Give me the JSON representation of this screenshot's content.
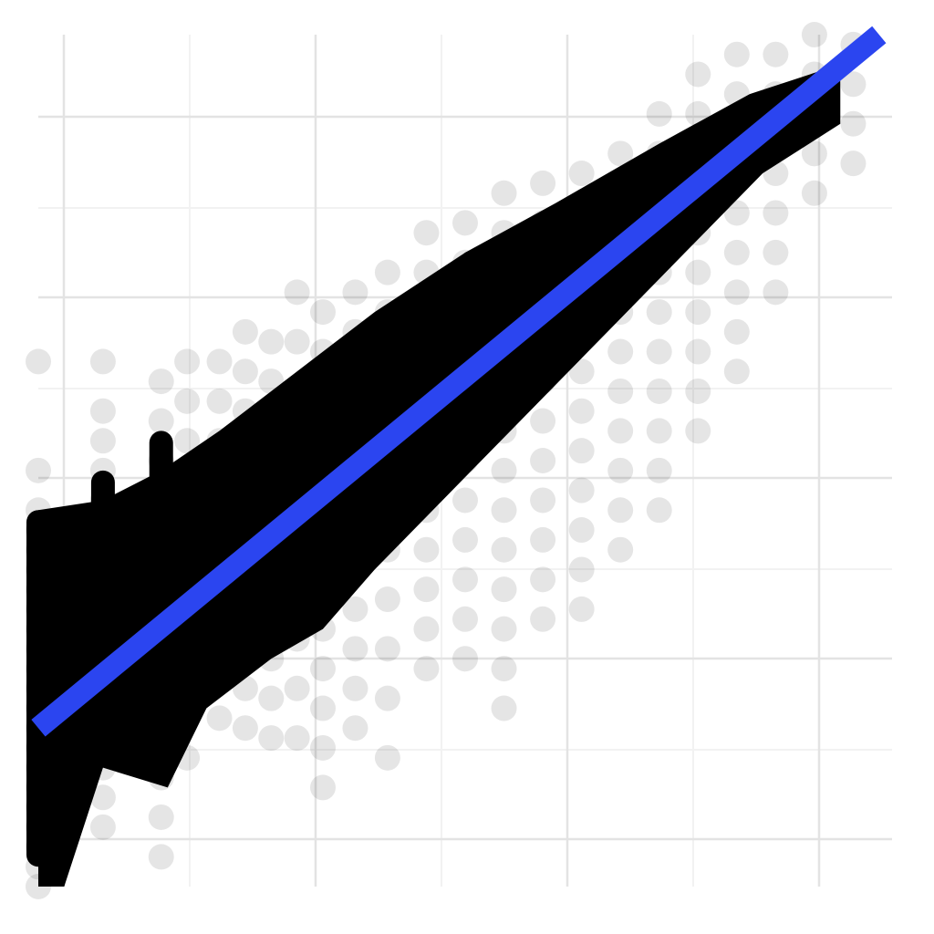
{
  "chart_data": {
    "type": "scatter",
    "title": "",
    "xlabel": "",
    "ylabel": "",
    "x_axis_scale": "linear",
    "y_axis_scale": "linear",
    "xlim": [
      0.0,
      6.6
    ],
    "ylim": [
      0.0,
      8.6
    ],
    "grid": true,
    "legend": "none",
    "point_color": "#000000",
    "point_alpha": 0.1,
    "series": [
      {
        "kind": "points",
        "description_free": true,
        "columns_x": [
          0.0,
          0.5,
          0.95,
          1.15,
          1.4,
          1.6,
          1.8,
          2.0,
          2.2,
          2.45,
          2.7
        ],
        "points": [
          [
            0.0,
            0.0
          ],
          [
            0.0,
            0.2
          ],
          [
            0.0,
            0.4
          ],
          [
            0.0,
            0.6
          ],
          [
            0.0,
            0.8
          ],
          [
            0.0,
            1.0
          ],
          [
            0.0,
            1.2
          ],
          [
            0.0,
            1.4
          ],
          [
            0.0,
            1.6
          ],
          [
            0.0,
            1.8
          ],
          [
            0.0,
            2.0
          ],
          [
            0.0,
            2.2
          ],
          [
            0.0,
            2.4
          ],
          [
            0.0,
            2.6
          ],
          [
            0.0,
            2.8
          ],
          [
            0.0,
            3.0
          ],
          [
            0.0,
            3.2
          ],
          [
            0.0,
            3.4
          ],
          [
            0.0,
            3.6
          ],
          [
            0.0,
            3.8
          ],
          [
            0.0,
            4.2
          ],
          [
            0.0,
            5.3
          ],
          [
            0.5,
            0.6
          ],
          [
            0.5,
            0.9
          ],
          [
            0.5,
            1.2
          ],
          [
            0.5,
            1.5
          ],
          [
            0.5,
            1.8
          ],
          [
            0.5,
            2.1
          ],
          [
            0.5,
            2.4
          ],
          [
            0.5,
            2.7
          ],
          [
            0.5,
            3.0
          ],
          [
            0.5,
            3.3
          ],
          [
            0.5,
            3.6
          ],
          [
            0.5,
            3.9
          ],
          [
            0.5,
            4.2
          ],
          [
            0.5,
            4.5
          ],
          [
            0.5,
            4.8
          ],
          [
            0.5,
            5.3
          ],
          [
            0.95,
            0.3
          ],
          [
            0.95,
            0.7
          ],
          [
            0.95,
            1.1
          ],
          [
            0.95,
            1.5
          ],
          [
            0.95,
            1.9
          ],
          [
            0.95,
            2.3
          ],
          [
            0.95,
            2.7
          ],
          [
            0.95,
            3.1
          ],
          [
            0.95,
            3.5
          ],
          [
            0.95,
            3.9
          ],
          [
            0.95,
            4.3
          ],
          [
            0.95,
            4.7
          ],
          [
            0.95,
            5.1
          ],
          [
            1.15,
            1.3
          ],
          [
            1.15,
            1.7
          ],
          [
            1.15,
            2.1
          ],
          [
            1.15,
            2.5
          ],
          [
            1.15,
            2.9
          ],
          [
            1.15,
            3.3
          ],
          [
            1.15,
            3.7
          ],
          [
            1.15,
            4.1
          ],
          [
            1.15,
            4.5
          ],
          [
            1.15,
            4.9
          ],
          [
            1.15,
            5.3
          ],
          [
            1.4,
            1.7
          ],
          [
            1.4,
            2.1
          ],
          [
            1.4,
            2.5
          ],
          [
            1.4,
            2.9
          ],
          [
            1.4,
            3.3
          ],
          [
            1.4,
            3.7
          ],
          [
            1.4,
            4.1
          ],
          [
            1.4,
            4.5
          ],
          [
            1.4,
            4.9
          ],
          [
            1.4,
            5.3
          ],
          [
            1.6,
            1.6
          ],
          [
            1.6,
            2.0
          ],
          [
            1.6,
            2.4
          ],
          [
            1.6,
            2.8
          ],
          [
            1.6,
            3.2
          ],
          [
            1.6,
            3.6
          ],
          [
            1.6,
            4.0
          ],
          [
            1.6,
            4.4
          ],
          [
            1.6,
            4.8
          ],
          [
            1.6,
            5.2
          ],
          [
            1.6,
            5.6
          ],
          [
            1.8,
            1.5
          ],
          [
            1.8,
            1.9
          ],
          [
            1.8,
            2.3
          ],
          [
            1.8,
            2.7
          ],
          [
            1.8,
            3.1
          ],
          [
            1.8,
            3.5
          ],
          [
            1.8,
            3.9
          ],
          [
            1.8,
            4.3
          ],
          [
            1.8,
            4.7
          ],
          [
            1.8,
            5.1
          ],
          [
            1.8,
            5.5
          ],
          [
            2.0,
            1.5
          ],
          [
            2.0,
            2.0
          ],
          [
            2.0,
            2.5
          ],
          [
            2.0,
            3.0
          ],
          [
            2.0,
            3.5
          ],
          [
            2.0,
            4.0
          ],
          [
            2.0,
            4.5
          ],
          [
            2.0,
            5.0
          ],
          [
            2.0,
            5.5
          ],
          [
            2.0,
            6.0
          ],
          [
            2.2,
            1.0
          ],
          [
            2.2,
            1.4
          ],
          [
            2.2,
            1.8
          ],
          [
            2.2,
            2.2
          ],
          [
            2.2,
            2.6
          ],
          [
            2.2,
            3.0
          ],
          [
            2.2,
            3.4
          ],
          [
            2.2,
            3.8
          ],
          [
            2.2,
            4.2
          ],
          [
            2.2,
            4.6
          ],
          [
            2.2,
            5.0
          ],
          [
            2.2,
            5.4
          ],
          [
            2.2,
            5.8
          ],
          [
            2.45,
            1.6
          ],
          [
            2.45,
            2.0
          ],
          [
            2.45,
            2.4
          ],
          [
            2.45,
            2.8
          ],
          [
            2.45,
            3.2
          ],
          [
            2.45,
            3.6
          ],
          [
            2.45,
            4.0
          ],
          [
            2.45,
            4.4
          ],
          [
            2.45,
            4.8
          ],
          [
            2.45,
            5.2
          ],
          [
            2.45,
            5.6
          ],
          [
            2.45,
            6.0
          ],
          [
            2.7,
            1.3
          ],
          [
            2.7,
            1.9
          ],
          [
            2.7,
            2.4
          ],
          [
            2.7,
            2.9
          ],
          [
            2.7,
            3.4
          ],
          [
            2.7,
            3.8
          ],
          [
            2.7,
            4.2
          ],
          [
            2.7,
            4.6
          ],
          [
            2.7,
            5.0
          ],
          [
            2.7,
            5.4
          ],
          [
            2.7,
            5.8
          ],
          [
            2.7,
            6.2
          ],
          [
            3.0,
            2.2
          ],
          [
            3.0,
            2.6
          ],
          [
            3.0,
            3.0
          ],
          [
            3.0,
            3.4
          ],
          [
            3.0,
            3.8
          ],
          [
            3.0,
            4.2
          ],
          [
            3.0,
            4.6
          ],
          [
            3.0,
            5.0
          ],
          [
            3.0,
            5.4
          ],
          [
            3.0,
            5.8
          ],
          [
            3.0,
            6.2
          ],
          [
            3.0,
            6.6
          ],
          [
            3.3,
            2.3
          ],
          [
            3.3,
            2.7
          ],
          [
            3.3,
            3.1
          ],
          [
            3.3,
            3.5
          ],
          [
            3.3,
            3.9
          ],
          [
            3.3,
            4.3
          ],
          [
            3.3,
            4.7
          ],
          [
            3.3,
            5.1
          ],
          [
            3.3,
            5.5
          ],
          [
            3.3,
            5.9
          ],
          [
            3.3,
            6.3
          ],
          [
            3.3,
            6.7
          ],
          [
            3.6,
            1.8
          ],
          [
            3.6,
            2.2
          ],
          [
            3.6,
            2.6
          ],
          [
            3.6,
            3.0
          ],
          [
            3.6,
            3.4
          ],
          [
            3.6,
            3.8
          ],
          [
            3.6,
            4.2
          ],
          [
            3.6,
            4.6
          ],
          [
            3.6,
            5.0
          ],
          [
            3.6,
            5.4
          ],
          [
            3.6,
            5.8
          ],
          [
            3.6,
            6.2
          ],
          [
            3.6,
            6.6
          ],
          [
            3.6,
            7.0
          ],
          [
            3.9,
            2.7
          ],
          [
            3.9,
            3.1
          ],
          [
            3.9,
            3.5
          ],
          [
            3.9,
            3.9
          ],
          [
            3.9,
            4.3
          ],
          [
            3.9,
            4.7
          ],
          [
            3.9,
            5.1
          ],
          [
            3.9,
            5.5
          ],
          [
            3.9,
            5.9
          ],
          [
            3.9,
            6.3
          ],
          [
            3.9,
            6.7
          ],
          [
            3.9,
            7.1
          ],
          [
            4.2,
            2.8
          ],
          [
            4.2,
            3.2
          ],
          [
            4.2,
            3.6
          ],
          [
            4.2,
            4.0
          ],
          [
            4.2,
            4.4
          ],
          [
            4.2,
            4.8
          ],
          [
            4.2,
            5.2
          ],
          [
            4.2,
            5.6
          ],
          [
            4.2,
            6.0
          ],
          [
            4.2,
            6.4
          ],
          [
            4.2,
            6.8
          ],
          [
            4.2,
            7.2
          ],
          [
            4.5,
            3.4
          ],
          [
            4.5,
            3.8
          ],
          [
            4.5,
            4.2
          ],
          [
            4.5,
            4.6
          ],
          [
            4.5,
            5.0
          ],
          [
            4.5,
            5.4
          ],
          [
            4.5,
            5.8
          ],
          [
            4.5,
            6.2
          ],
          [
            4.5,
            6.6
          ],
          [
            4.5,
            7.0
          ],
          [
            4.5,
            7.4
          ],
          [
            4.8,
            3.8
          ],
          [
            4.8,
            4.2
          ],
          [
            4.8,
            4.6
          ],
          [
            4.8,
            5.0
          ],
          [
            4.8,
            5.4
          ],
          [
            4.8,
            5.8
          ],
          [
            4.8,
            6.2
          ],
          [
            4.8,
            6.6
          ],
          [
            4.8,
            7.0
          ],
          [
            4.8,
            7.4
          ],
          [
            4.8,
            7.8
          ],
          [
            5.1,
            4.6
          ],
          [
            5.1,
            5.0
          ],
          [
            5.1,
            5.4
          ],
          [
            5.1,
            5.8
          ],
          [
            5.1,
            6.2
          ],
          [
            5.1,
            6.6
          ],
          [
            5.1,
            7.0
          ],
          [
            5.1,
            7.4
          ],
          [
            5.1,
            7.8
          ],
          [
            5.1,
            8.2
          ],
          [
            5.4,
            5.2
          ],
          [
            5.4,
            5.6
          ],
          [
            5.4,
            6.0
          ],
          [
            5.4,
            6.4
          ],
          [
            5.4,
            6.8
          ],
          [
            5.4,
            7.2
          ],
          [
            5.4,
            7.6
          ],
          [
            5.4,
            8.0
          ],
          [
            5.4,
            8.4
          ],
          [
            5.7,
            6.0
          ],
          [
            5.7,
            6.4
          ],
          [
            5.7,
            6.8
          ],
          [
            5.7,
            7.2
          ],
          [
            5.7,
            7.6
          ],
          [
            5.7,
            8.0
          ],
          [
            5.7,
            8.4
          ],
          [
            6.0,
            7.0
          ],
          [
            6.0,
            7.4
          ],
          [
            6.0,
            7.8
          ],
          [
            6.0,
            8.2
          ],
          [
            6.0,
            8.6
          ],
          [
            6.3,
            7.3
          ],
          [
            6.3,
            7.7
          ],
          [
            6.3,
            8.1
          ],
          [
            6.3,
            8.5
          ]
        ]
      },
      {
        "kind": "fit-line",
        "color": "#2b45f0",
        "x": [
          0.0,
          6.5
        ],
        "y": [
          1.6,
          8.6
        ]
      }
    ]
  }
}
